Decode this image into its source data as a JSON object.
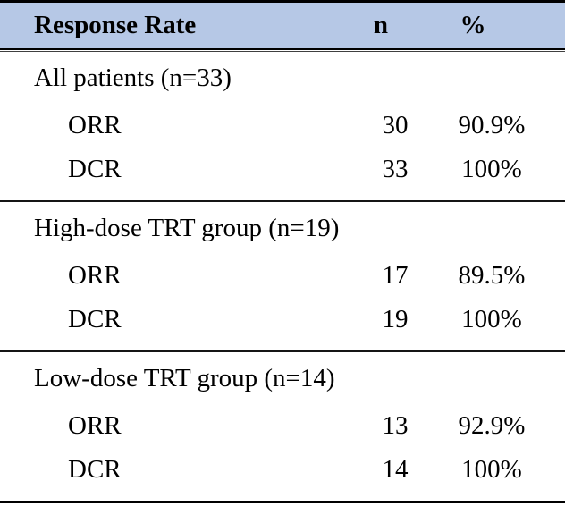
{
  "colors": {
    "header_bg": "#b6c8e6",
    "rule": "#000000",
    "text": "#000000"
  },
  "table": {
    "columns": [
      "Response Rate",
      "n",
      "%"
    ],
    "sections": [
      {
        "label": "All patients (n=33)",
        "rows": [
          {
            "name": "ORR",
            "n": "30",
            "pct": "90.9%"
          },
          {
            "name": "DCR",
            "n": "33",
            "pct": "100%"
          }
        ]
      },
      {
        "label": "High-dose TRT group (n=19)",
        "rows": [
          {
            "name": "ORR",
            "n": "17",
            "pct": "89.5%"
          },
          {
            "name": "DCR",
            "n": "19",
            "pct": "100%"
          }
        ]
      },
      {
        "label": "Low-dose TRT group (n=14)",
        "rows": [
          {
            "name": "ORR",
            "n": "13",
            "pct": "92.9%"
          },
          {
            "name": "DCR",
            "n": "14",
            "pct": "100%"
          }
        ]
      }
    ]
  }
}
